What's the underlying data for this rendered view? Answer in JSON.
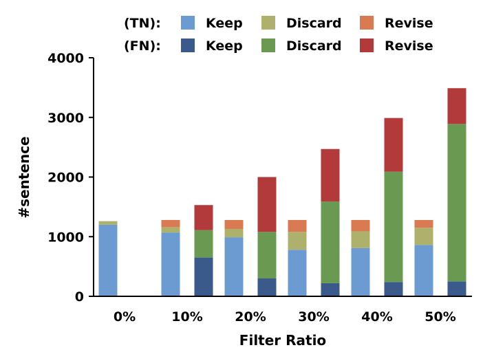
{
  "chart_data": {
    "type": "bar",
    "stacked": true,
    "title": "",
    "xlabel": "Filter Ratio",
    "ylabel": "#sentence",
    "ylim": [
      0,
      4000
    ],
    "yticks": [
      "0",
      "1000",
      "2000",
      "3000",
      "4000"
    ],
    "categories": [
      "0%",
      "10%",
      "20%",
      "30%",
      "40%",
      "50%"
    ],
    "legend": {
      "placement": "top",
      "rows": [
        {
          "prefix": "(TN):",
          "items": [
            {
              "label": "Keep",
              "color": "#6b9bd1"
            },
            {
              "label": "Discard",
              "color": "#aeb16c"
            },
            {
              "label": "Revise",
              "color": "#d97a52"
            }
          ]
        },
        {
          "prefix": "(FN):",
          "items": [
            {
              "label": "Keep",
              "color": "#3a5a8c"
            },
            {
              "label": "Discard",
              "color": "#6a9a52"
            },
            {
              "label": "Revise",
              "color": "#b23a3a"
            }
          ]
        }
      ]
    },
    "groups": [
      {
        "name": "TN",
        "colors": [
          "#6b9bd1",
          "#aeb16c",
          "#d97a52"
        ],
        "stacks": [
          {
            "Keep": 1200,
            "Discard": 60,
            "Revise": 0
          },
          {
            "Keep": 1070,
            "Discard": 90,
            "Revise": 120
          },
          {
            "Keep": 990,
            "Discard": 140,
            "Revise": 150
          },
          {
            "Keep": 780,
            "Discard": 300,
            "Revise": 200
          },
          {
            "Keep": 810,
            "Discard": 280,
            "Revise": 190
          },
          {
            "Keep": 860,
            "Discard": 290,
            "Revise": 130
          }
        ]
      },
      {
        "name": "FN",
        "colors": [
          "#3a5a8c",
          "#6a9a52",
          "#b23a3a"
        ],
        "stacks": [
          {
            "Keep": 0,
            "Discard": 0,
            "Revise": 0
          },
          {
            "Keep": 650,
            "Discard": 460,
            "Revise": 420
          },
          {
            "Keep": 300,
            "Discard": 780,
            "Revise": 920
          },
          {
            "Keep": 220,
            "Discard": 1370,
            "Revise": 880
          },
          {
            "Keep": 240,
            "Discard": 1850,
            "Revise": 900
          },
          {
            "Keep": 250,
            "Discard": 2640,
            "Revise": 600
          }
        ]
      }
    ]
  }
}
